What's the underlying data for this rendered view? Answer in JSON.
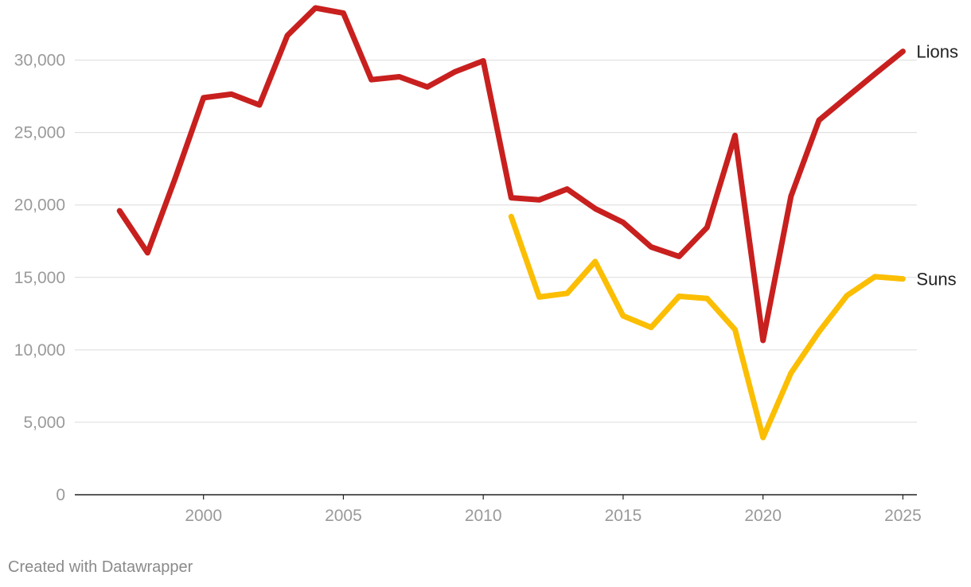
{
  "chart_data": {
    "type": "line",
    "title": "",
    "xlabel": "",
    "ylabel": "",
    "x": [
      1997,
      1998,
      1999,
      2000,
      2001,
      2002,
      2003,
      2004,
      2005,
      2006,
      2007,
      2008,
      2009,
      2010,
      2011,
      2012,
      2013,
      2014,
      2015,
      2016,
      2017,
      2018,
      2019,
      2020,
      2021,
      2022,
      2023,
      2024,
      2025
    ],
    "xlim": [
      1995.4,
      2025.5
    ],
    "ylim": [
      0,
      33600
    ],
    "x_ticks": [
      2000,
      2005,
      2010,
      2015,
      2020,
      2025
    ],
    "x_tick_labels": [
      "2000",
      "2005",
      "2010",
      "2015",
      "2020",
      "2025"
    ],
    "y_ticks": [
      0,
      5000,
      10000,
      15000,
      20000,
      25000,
      30000
    ],
    "y_tick_labels": [
      "0",
      "5,000",
      "10,000",
      "15,000",
      "20,000",
      "25,000",
      "30,000"
    ],
    "grid": true,
    "series": [
      {
        "name": "Lions",
        "color": "#c8201e",
        "values": [
          19600,
          16700,
          21900,
          27400,
          27650,
          26900,
          31700,
          33600,
          33250,
          28650,
          28850,
          28150,
          29200,
          29950,
          20500,
          20350,
          21100,
          19750,
          18800,
          17100,
          16450,
          18450,
          24800,
          10650,
          20600,
          25850,
          27450,
          29050,
          30600
        ]
      },
      {
        "name": "Suns",
        "color": "#fbbe02",
        "values": [
          null,
          null,
          null,
          null,
          null,
          null,
          null,
          null,
          null,
          null,
          null,
          null,
          null,
          null,
          19200,
          13650,
          13900,
          16100,
          12350,
          11550,
          13700,
          13550,
          11400,
          3950,
          8400,
          11250,
          13750,
          15050,
          14900
        ]
      }
    ]
  },
  "footer": {
    "credit": "Created with Datawrapper"
  }
}
